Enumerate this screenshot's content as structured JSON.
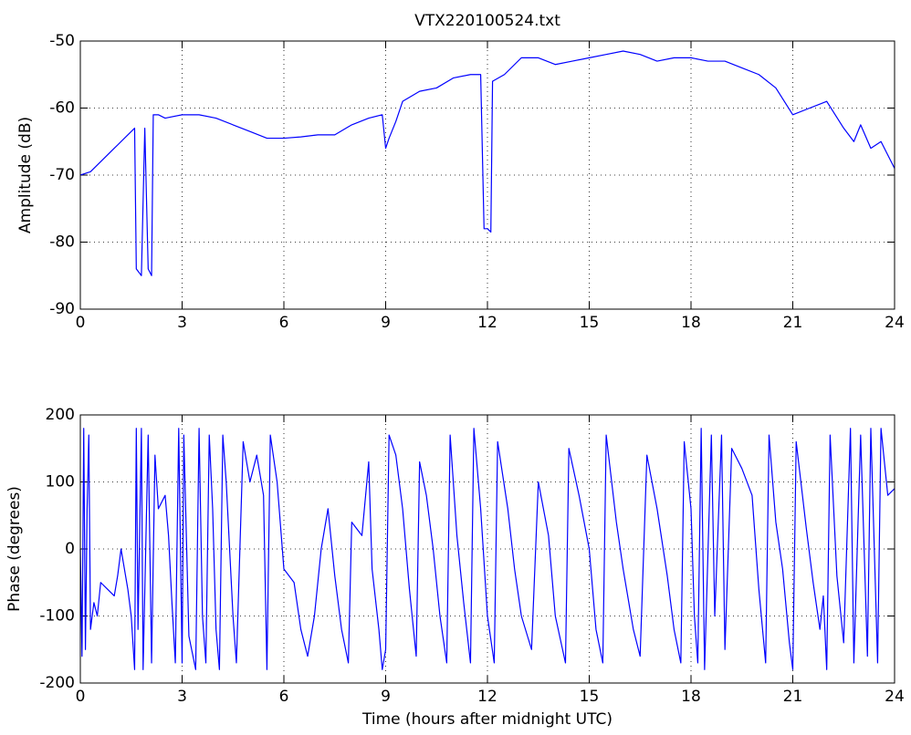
{
  "chart_data": [
    {
      "type": "line",
      "title": "VTX220100524.txt",
      "ylabel": "Amplitude (dB)",
      "xlim": [
        0,
        24
      ],
      "xticks": [
        0,
        3,
        6,
        9,
        12,
        15,
        18,
        21,
        24
      ],
      "ylim": [
        -90,
        -50
      ],
      "yticks": [
        -90,
        -80,
        -70,
        -60,
        -50
      ],
      "grid": true,
      "x": [
        0,
        0.3,
        0.6,
        1.0,
        1.3,
        1.6,
        1.65,
        1.8,
        1.9,
        2.0,
        2.1,
        2.15,
        2.3,
        2.5,
        3,
        3.5,
        4,
        4.5,
        5,
        5.5,
        6,
        6.5,
        7,
        7.5,
        8,
        8.5,
        8.9,
        9.0,
        9.1,
        9.3,
        9.5,
        10,
        10.5,
        11,
        11.5,
        11.8,
        11.9,
        12.0,
        12.1,
        12.15,
        12.5,
        13,
        13.5,
        14,
        14.5,
        15,
        15.5,
        16,
        16.5,
        17,
        17.5,
        18,
        18.5,
        19,
        19.5,
        20,
        20.5,
        21,
        21.5,
        22,
        22.5,
        22.8,
        23,
        23.3,
        23.6,
        24
      ],
      "series": [
        {
          "color": "#0000ff",
          "values": [
            -70,
            -69.5,
            -68,
            -66,
            -64.5,
            -63,
            -84,
            -85,
            -63,
            -84,
            -85,
            -61,
            -61,
            -61.5,
            -61,
            -61,
            -61.5,
            -62.5,
            -63.5,
            -64.5,
            -64.5,
            -64.3,
            -64,
            -64,
            -62.5,
            -61.5,
            -61,
            -66,
            -64.5,
            -62,
            -59,
            -57.5,
            -57,
            -55.5,
            -55,
            -55,
            -78,
            -78,
            -78.5,
            -56,
            -55,
            -52.5,
            -52.5,
            -53.5,
            -53,
            -52.5,
            -52,
            -51.5,
            -52,
            -53,
            -52.5,
            -52.5,
            -53,
            -53,
            -54,
            -55,
            -57,
            -61,
            -60,
            -59,
            -63,
            -65,
            -62.5,
            -66,
            -65,
            -69
          ]
        }
      ]
    },
    {
      "type": "line",
      "ylabel": "Phase (degrees)",
      "xlabel": "Time (hours after midnight UTC)",
      "xlim": [
        0,
        24
      ],
      "xticks": [
        0,
        3,
        6,
        9,
        12,
        15,
        18,
        21,
        24
      ],
      "ylim": [
        -200,
        200
      ],
      "yticks": [
        -200,
        -100,
        0,
        100,
        200
      ],
      "grid": true,
      "x": [
        0,
        0.05,
        0.1,
        0.15,
        0.2,
        0.25,
        0.3,
        0.4,
        0.5,
        0.6,
        0.8,
        1.0,
        1.1,
        1.2,
        1.4,
        1.5,
        1.6,
        1.65,
        1.7,
        1.8,
        1.85,
        2.0,
        2.1,
        2.2,
        2.3,
        2.5,
        2.6,
        2.7,
        2.8,
        2.9,
        3.0,
        3.05,
        3.2,
        3.4,
        3.5,
        3.6,
        3.7,
        3.8,
        3.9,
        4.0,
        4.1,
        4.2,
        4.3,
        4.5,
        4.6,
        4.8,
        5.0,
        5.2,
        5.4,
        5.5,
        5.6,
        5.8,
        6.0,
        6.3,
        6.5,
        6.7,
        6.9,
        7.1,
        7.3,
        7.5,
        7.7,
        7.9,
        8.0,
        8.3,
        8.5,
        8.6,
        8.8,
        8.9,
        9.0,
        9.1,
        9.3,
        9.5,
        9.7,
        9.9,
        10.0,
        10.2,
        10.4,
        10.6,
        10.8,
        10.9,
        11.1,
        11.3,
        11.5,
        11.6,
        11.8,
        12.0,
        12.2,
        12.3,
        12.6,
        12.8,
        13.0,
        13.3,
        13.5,
        13.8,
        14.0,
        14.3,
        14.4,
        14.7,
        15.0,
        15.2,
        15.4,
        15.5,
        15.8,
        16.0,
        16.3,
        16.5,
        16.7,
        17.0,
        17.3,
        17.5,
        17.7,
        17.8,
        18.0,
        18.1,
        18.2,
        18.3,
        18.4,
        18.6,
        18.7,
        18.9,
        19.0,
        19.2,
        19.5,
        19.8,
        20.0,
        20.2,
        20.3,
        20.5,
        20.7,
        20.9,
        21.0,
        21.1,
        21.4,
        21.6,
        21.8,
        21.9,
        22.0,
        22.1,
        22.3,
        22.5,
        22.7,
        22.8,
        23.0,
        23.2,
        23.3,
        23.5,
        23.6,
        23.8,
        24.0
      ],
      "series": [
        {
          "color": "#0000ff",
          "values": [
            0,
            -160,
            180,
            -150,
            60,
            170,
            -120,
            -80,
            -100,
            -50,
            -60,
            -70,
            -40,
            0,
            -60,
            -100,
            -180,
            180,
            -120,
            180,
            -180,
            170,
            -170,
            140,
            60,
            80,
            20,
            -80,
            -170,
            180,
            -170,
            170,
            -130,
            -180,
            180,
            -100,
            -170,
            170,
            60,
            -120,
            -180,
            170,
            100,
            -100,
            -170,
            160,
            100,
            140,
            80,
            -180,
            170,
            100,
            -30,
            -50,
            -120,
            -160,
            -100,
            0,
            60,
            -40,
            -120,
            -170,
            40,
            20,
            130,
            -30,
            -120,
            -180,
            -150,
            170,
            140,
            60,
            -60,
            -160,
            130,
            80,
            0,
            -100,
            -170,
            170,
            20,
            -80,
            -170,
            180,
            60,
            -100,
            -170,
            160,
            60,
            -30,
            -100,
            -150,
            100,
            20,
            -100,
            -170,
            150,
            80,
            0,
            -120,
            -170,
            170,
            40,
            -30,
            -120,
            -160,
            140,
            60,
            -40,
            -120,
            -170,
            160,
            60,
            -100,
            -170,
            180,
            -180,
            170,
            -100,
            170,
            -150,
            150,
            120,
            80,
            -60,
            -170,
            170,
            40,
            -30,
            -140,
            -180,
            160,
            30,
            -50,
            -120,
            -70,
            -180,
            170,
            -40,
            -140,
            180,
            -170,
            170,
            -160,
            180,
            -170,
            180,
            80,
            90
          ]
        }
      ]
    }
  ]
}
